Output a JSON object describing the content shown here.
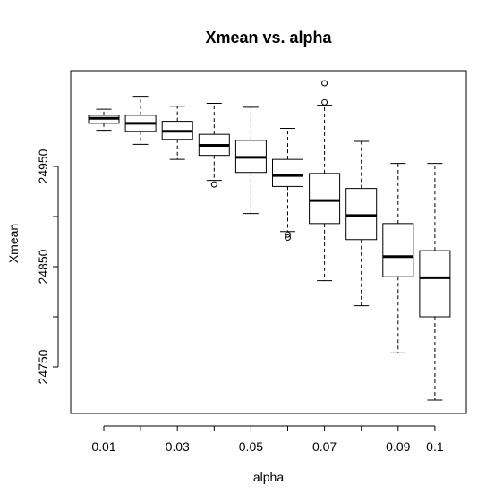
{
  "chart_data": {
    "type": "box",
    "title": "Xmean vs. alpha",
    "xlabel": "alpha",
    "ylabel": "Xmean",
    "ylim": [
      24710,
      25010
    ],
    "x_tick_labels": [
      "0.01",
      "0.03",
      "0.05",
      "0.07",
      "0.09",
      "0.1"
    ],
    "y_tick_labels": [
      "24750",
      "24850",
      "24950"
    ],
    "y_ticks": [
      24750,
      24850,
      24950
    ],
    "grid": false,
    "legend": "none",
    "boxes": [
      {
        "alpha": 0.01,
        "min": 24986,
        "q1": 24993,
        "median": 24998,
        "q3": 25001,
        "max": 25007,
        "outliers": []
      },
      {
        "alpha": 0.02,
        "min": 24972,
        "q1": 24985,
        "median": 24993,
        "q3": 25001,
        "max": 25020,
        "outliers": []
      },
      {
        "alpha": 0.03,
        "min": 24957,
        "q1": 24977,
        "median": 24985,
        "q3": 24995,
        "max": 25010,
        "outliers": []
      },
      {
        "alpha": 0.04,
        "min": 24936,
        "q1": 24961,
        "median": 24971,
        "q3": 24982,
        "max": 25013,
        "outliers": [
          24932
        ]
      },
      {
        "alpha": 0.05,
        "min": 24903,
        "q1": 24944,
        "median": 24959,
        "q3": 24976,
        "max": 25009,
        "outliers": []
      },
      {
        "alpha": 0.06,
        "min": 24885,
        "q1": 24930,
        "median": 24941,
        "q3": 24957,
        "max": 24988,
        "outliers": [
          24882,
          24879
        ]
      },
      {
        "alpha": 0.07,
        "min": 24836,
        "q1": 24893,
        "median": 24916,
        "q3": 24943,
        "max": 25011,
        "outliers": [
          25014,
          25033
        ]
      },
      {
        "alpha": 0.08,
        "min": 24811,
        "q1": 24877,
        "median": 24901,
        "q3": 24928,
        "max": 24975,
        "outliers": []
      },
      {
        "alpha": 0.09,
        "min": 24764,
        "q1": 24840,
        "median": 24860,
        "q3": 24893,
        "max": 24953,
        "outliers": []
      },
      {
        "alpha": 0.1,
        "min": 24717,
        "q1": 24800,
        "median": 24839,
        "q3": 24866,
        "max": 24953,
        "outliers": []
      }
    ],
    "colors": {
      "box_fill": "#ffffff",
      "stroke": "#000000"
    }
  }
}
